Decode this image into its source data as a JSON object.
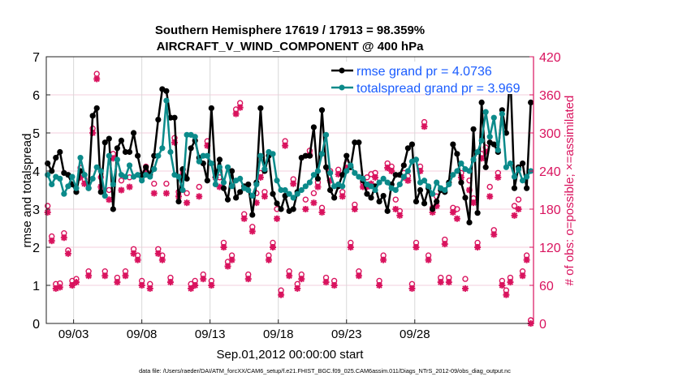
{
  "chart_data": {
    "type": "line",
    "title": "Southern Hemisphere 17619 / 17913 = 98.359%",
    "subtitle": "AIRCRAFT_V_WIND_COMPONENT @ 400 hPa",
    "xlabel": "Sep.01,2012 00:00:00 start",
    "ylabel": "rmse and totalspread",
    "y2label": "# of obs: o=possible; ×=assimilated",
    "footer": "data file: /Users/raeder/DAI/ATM_forcXX/CAM6_setup/f.e21.FHIST_BGC.f09_025.CAM6assim.011/Diags_NTrS_2012-09/obs_diag_output.nc",
    "xlim_days": [
      0,
      35.7
    ],
    "x_first_day": 0.1,
    "x_last_day": 35.5,
    "xticks": [
      {
        "day": 2,
        "label": "09/03"
      },
      {
        "day": 7,
        "label": "09/08"
      },
      {
        "day": 12,
        "label": "09/13"
      },
      {
        "day": 17,
        "label": "09/18"
      },
      {
        "day": 22,
        "label": "09/23"
      },
      {
        "day": 27,
        "label": "09/28"
      }
    ],
    "ylim": [
      0,
      7
    ],
    "yticks": [
      "0",
      "1",
      "2",
      "3",
      "4",
      "5",
      "6",
      "7"
    ],
    "y2lim": [
      0,
      420
    ],
    "y2ticks": [
      "0",
      "60",
      "120",
      "180",
      "240",
      "300",
      "360",
      "420"
    ],
    "grid": true,
    "legend_position": "top-right",
    "colors": {
      "rmse": "#000000",
      "spread": "#0b8a8a",
      "obs": "#d9135e",
      "legend_text": "#1a5cff",
      "hgrid": "#f3cfdc",
      "vgrid": "#d8d8d8"
    },
    "series": [
      {
        "name": "rmse grand pr = 4.0736",
        "key": "rmse",
        "values": [
          4.2,
          4.0,
          4.35,
          4.5,
          3.95,
          3.9,
          3.65,
          3.45,
          4.0,
          3.9,
          3.55,
          5.45,
          5.65,
          3.45,
          4.75,
          4.85,
          3.0,
          4.6,
          4.8,
          4.5,
          4.5,
          5.0,
          4.4,
          3.9,
          4.1,
          3.9,
          4.4,
          5.35,
          6.15,
          6.1,
          5.4,
          5.4,
          3.2,
          4.05,
          3.8,
          4.6,
          4.8,
          4.35,
          4.2,
          3.75,
          5.65,
          3.85,
          4.3,
          3.55,
          3.25,
          4.0,
          3.3,
          3.45,
          3.6,
          3.65,
          2.85,
          3.7,
          5.65,
          4.0,
          4.4,
          3.4,
          3.15,
          3.0,
          3.35,
          2.95,
          3.0,
          3.45,
          4.35,
          4.4,
          4.4,
          5.15,
          3.8,
          5.6,
          4.1,
          3.5,
          3.3,
          3.6,
          3.9,
          4.4,
          4.1,
          4.75,
          4.75,
          3.75,
          3.4,
          3.3,
          3.6,
          3.2,
          3.35,
          2.95,
          3.65,
          3.9,
          3.9,
          4.15,
          4.6,
          4.7,
          3.2,
          3.5,
          3.15,
          3.55,
          3.0,
          3.2,
          3.5,
          3.45,
          3.7,
          4.7,
          4.45,
          3.7,
          3.3,
          2.65,
          5.1,
          2.9,
          5.8,
          4.1,
          4.75,
          4.7,
          4.5,
          5.6,
          5.0,
          6.6,
          3.55,
          4.1,
          4.2,
          3.55,
          5.8
        ]
      },
      {
        "name": "totalspread grand pr = 3.969",
        "key": "spread",
        "values": [
          3.9,
          3.65,
          3.85,
          3.8,
          3.4,
          3.6,
          3.85,
          3.55,
          4.35,
          3.9,
          3.55,
          3.8,
          4.1,
          4.0,
          3.35,
          4.4,
          3.65,
          4.3,
          3.9,
          3.85,
          4.15,
          3.85,
          3.9,
          3.75,
          3.9,
          3.85,
          4.05,
          4.4,
          4.6,
          5.85,
          4.5,
          3.9,
          3.85,
          3.5,
          4.95,
          4.95,
          4.9,
          4.25,
          4.4,
          4.4,
          4.2,
          3.65,
          4.1,
          3.7,
          4.1,
          3.6,
          3.75,
          3.8,
          3.55,
          3.5,
          3.35,
          3.65,
          4.4,
          4.05,
          4.5,
          4.45,
          3.75,
          3.5,
          3.5,
          3.4,
          3.3,
          3.4,
          3.5,
          3.6,
          3.7,
          3.9,
          4.0,
          4.45,
          4.95,
          3.95,
          3.6,
          3.65,
          3.6,
          4.0,
          4.15,
          3.95,
          3.85,
          3.8,
          3.65,
          3.6,
          3.5,
          3.7,
          3.8,
          3.7,
          3.55,
          3.5,
          3.65,
          3.85,
          4.0,
          4.25,
          4.3,
          3.7,
          3.75,
          3.6,
          3.4,
          3.7,
          3.55,
          3.5,
          3.65,
          3.9,
          4.0,
          4.2,
          4.05,
          4.0,
          4.3,
          4.5,
          4.8,
          5.55,
          4.9,
          5.4,
          4.55,
          5.5,
          4.1,
          4.2,
          3.85,
          4.05,
          3.75,
          3.85,
          4.0
        ]
      }
    ],
    "obs_possible": [
      180,
      132,
      57,
      58,
      137,
      110,
      62,
      65,
      240,
      222,
      77,
      302,
      388,
      225,
      77,
      205,
      262,
      67,
      220,
      77,
      225,
      112,
      102,
      62,
      242,
      57,
      215,
      112,
      102,
      215,
      67,
      287,
      202,
      237,
      200,
      57,
      62,
      210,
      72,
      282,
      62,
      232,
      225,
      122,
      92,
      102,
      332,
      342,
      167,
      72,
      147,
      200,
      232,
      202,
      102,
      122,
      175,
      47,
      282,
      77,
      222,
      57,
      72,
      190,
      267,
      200,
      217,
      177,
      67,
      235,
      62,
      237,
      202,
      247,
      122,
      182,
      77,
      217,
      225,
      230,
      232,
      62,
      102,
      247,
      242,
      190,
      172,
      232,
      227,
      57,
      122,
      242,
      312,
      102,
      177,
      195,
      67,
      127,
      67,
      177,
      175,
      232,
      65,
      220,
      192,
      122,
      262,
      272,
      210,
      142,
      232,
      62,
      47,
      67,
      180,
      190,
      77,
      102,
      0
    ],
    "obs_assimilated": [
      175,
      130,
      55,
      57,
      135,
      110,
      60,
      65,
      230,
      220,
      75,
      300,
      385,
      215,
      75,
      195,
      260,
      65,
      210,
      75,
      215,
      110,
      100,
      60,
      240,
      55,
      205,
      110,
      100,
      205,
      65,
      285,
      200,
      235,
      190,
      55,
      60,
      200,
      70,
      280,
      60,
      230,
      215,
      120,
      90,
      100,
      330,
      340,
      165,
      70,
      145,
      190,
      230,
      200,
      100,
      120,
      165,
      45,
      280,
      75,
      220,
      55,
      70,
      180,
      265,
      190,
      215,
      175,
      65,
      225,
      60,
      235,
      200,
      245,
      120,
      180,
      75,
      215,
      215,
      220,
      230,
      60,
      100,
      245,
      240,
      180,
      170,
      230,
      225,
      55,
      120,
      240,
      310,
      100,
      175,
      185,
      65,
      125,
      65,
      175,
      165,
      230,
      55,
      210,
      190,
      120,
      260,
      270,
      200,
      140,
      230,
      60,
      45,
      65,
      170,
      180,
      75,
      100,
      0
    ]
  }
}
